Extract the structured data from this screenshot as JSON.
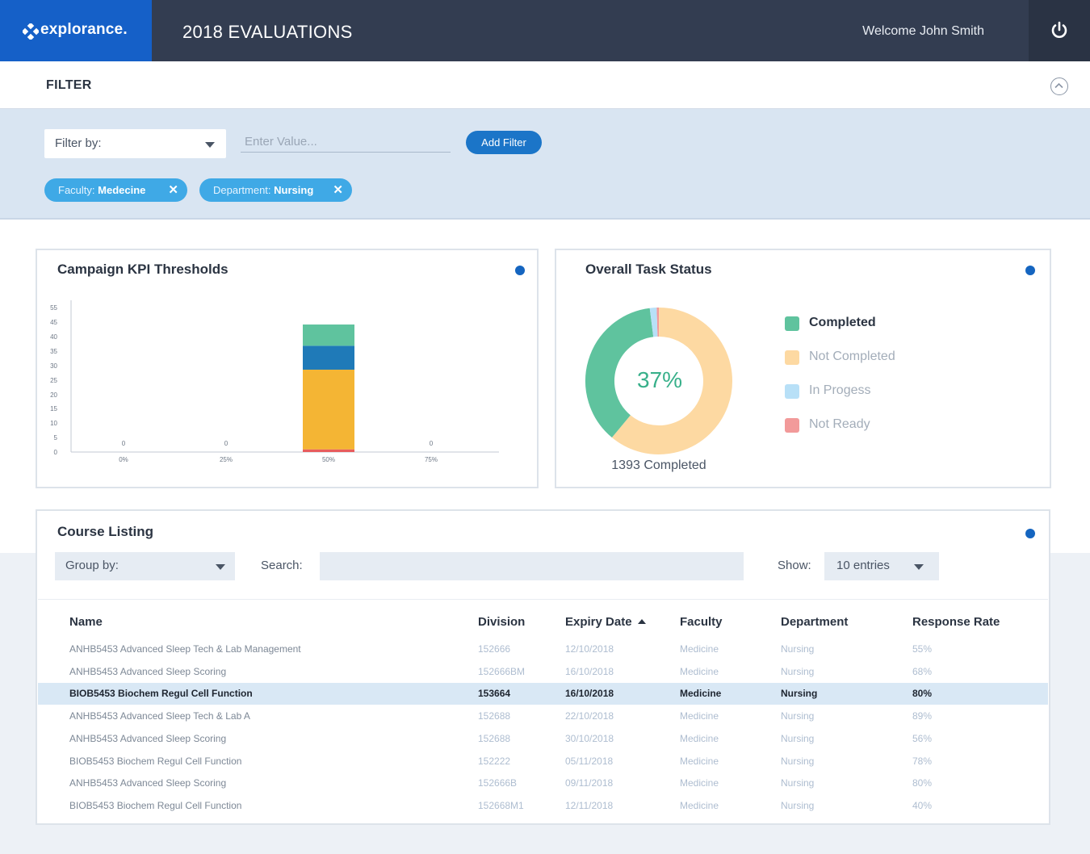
{
  "header": {
    "logo": "explorance.",
    "title": "2018 EVALUATIONS",
    "welcome": "Welcome John Smith",
    "power_icon": "power-icon"
  },
  "filter": {
    "title": "FILTER",
    "filter_by_label": "Filter by:",
    "value_placeholder": "Enter Value...",
    "add_button": "Add Filter",
    "chips": [
      {
        "key": "Faculty:",
        "value": "Medecine"
      },
      {
        "key": "Department:",
        "value": "Nursing"
      }
    ]
  },
  "kpi_card": {
    "title": "Campaign KPI Thresholds"
  },
  "chart_data": [
    {
      "type": "bar",
      "stacked": true,
      "title": "Campaign KPI Thresholds",
      "categories": [
        "0%",
        "25%",
        "50%",
        "75%"
      ],
      "y_ticks": [
        "0",
        "5",
        "10",
        "15",
        "20",
        "25",
        "30",
        "35",
        "40",
        "45",
        "55"
      ],
      "ylim": [
        0,
        55
      ],
      "series": [
        {
          "color": "#e85c5c",
          "values": [
            0,
            0,
            1,
            0
          ]
        },
        {
          "color": "#f4b534",
          "values": [
            0,
            0,
            30,
            0
          ]
        },
        {
          "color": "#1f7ab8",
          "values": [
            0,
            0,
            9,
            0
          ]
        },
        {
          "color": "#5fc39e",
          "values": [
            0,
            0,
            8,
            0
          ]
        }
      ],
      "zero_labels": [
        "0",
        "0",
        "0"
      ]
    },
    {
      "type": "pie",
      "title": "Overall Task Status",
      "center_label": "37%",
      "footer": "1393 Completed",
      "slices": [
        {
          "label": "Completed",
          "value": 37,
          "color": "#5fc39e"
        },
        {
          "label": "Not Completed",
          "value": 61,
          "color": "#fdd9a2"
        },
        {
          "label": "In Progess",
          "value": 1.5,
          "color": "#b8e0f7"
        },
        {
          "label": "Not Ready",
          "value": 0.5,
          "color": "#f29a9a"
        }
      ]
    }
  ],
  "status_card": {
    "title": "Overall Task Status",
    "center": "37%",
    "footer": "1393 Completed",
    "legend": [
      {
        "label": "Completed",
        "color": "#5fc39e",
        "text_color": "#2b3442"
      },
      {
        "label": "Not Completed",
        "color": "#fdd9a2",
        "text_color": "#a3adb9"
      },
      {
        "label": "In Progess",
        "color": "#b8e0f7",
        "text_color": "#a3adb9"
      },
      {
        "label": "Not Ready",
        "color": "#f29a9a",
        "text_color": "#a3adb9"
      }
    ]
  },
  "course_listing": {
    "title": "Course Listing",
    "group_by": "Group by:",
    "search_label": "Search:",
    "show_label": "Show:",
    "show_value": "10 entries",
    "columns": [
      "Name",
      "Division",
      "Expiry Date",
      "Faculty",
      "Department",
      "Response Rate"
    ],
    "rows": [
      [
        "ANHB5453 Advanced Sleep Tech & Lab Management",
        "152666",
        "12/10/2018",
        "Medicine",
        "Nursing",
        "55%"
      ],
      [
        "ANHB5453 Advanced Sleep Scoring",
        "152666BM",
        "16/10/2018",
        "Medicine",
        "Nursing",
        "68%"
      ],
      [
        "BIOB5453 Biochem Regul Cell Function",
        "153664",
        "16/10/2018",
        "Medicine",
        "Nursing",
        "80%"
      ],
      [
        "ANHB5453 Advanced Sleep Tech & Lab A",
        "152688",
        "22/10/2018",
        "Medicine",
        "Nursing",
        "89%"
      ],
      [
        "ANHB5453 Advanced Sleep Scoring",
        "152688",
        "30/10/2018",
        "Medicine",
        "Nursing",
        "56%"
      ],
      [
        "BIOB5453 Biochem Regul Cell Function",
        "152222",
        "05/11/2018",
        "Medicine",
        "Nursing",
        "78%"
      ],
      [
        "ANHB5453 Advanced Sleep Scoring",
        "152666B",
        "09/11/2018",
        "Medicine",
        "Nursing",
        "80%"
      ],
      [
        "BIOB5453 Biochem Regul Cell Function",
        "152668M1",
        "12/11/2018",
        "Medicine",
        "Nursing",
        "40%"
      ]
    ],
    "highlighted_row": 2
  }
}
